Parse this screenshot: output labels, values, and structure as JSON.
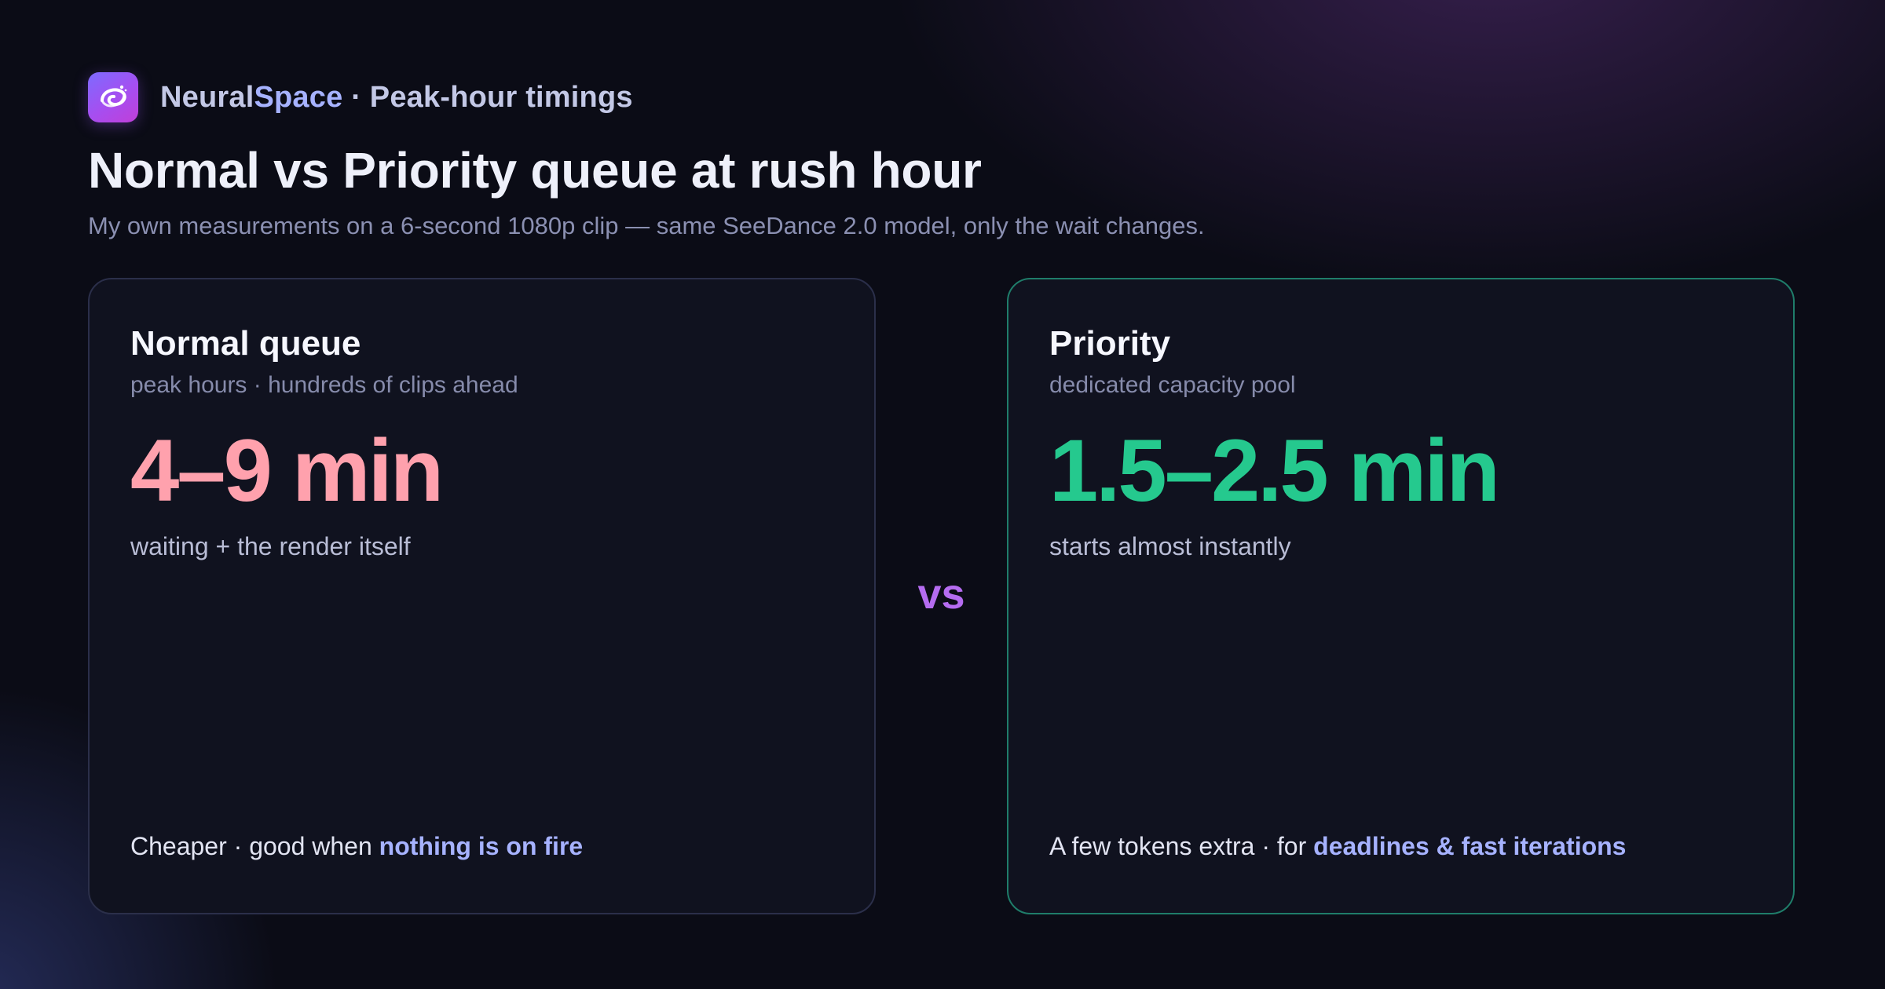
{
  "brand": {
    "name_part1": "Neural",
    "name_part2": "Space",
    "section": " · Peak-hour timings"
  },
  "title": "Normal vs Priority queue at rush hour",
  "subtitle": "My own measurements on a 6-second 1080p clip — same SeeDance 2.0 model, only the wait changes.",
  "vs_label": "vs",
  "cards": {
    "normal": {
      "title": "Normal queue",
      "subtitle": "peak hours · hundreds of clips ahead",
      "time": "4–9 min",
      "time_note": "waiting + the render itself",
      "footer_prefix": "Cheaper · good when ",
      "footer_highlight": "nothing is on fire"
    },
    "priority": {
      "title": "Priority",
      "subtitle": "dedicated capacity pool",
      "time": "1.5–2.5 min",
      "time_note": "starts almost instantly",
      "footer_prefix": "A few tokens extra · for ",
      "footer_highlight": "deadlines & fast iterations"
    }
  },
  "colors": {
    "normal_accent": "#ffa1ad",
    "priority_accent": "#25c98e",
    "highlight": "#a6b2ff",
    "vs": "#b56cf0"
  },
  "icons": {
    "logo": "galaxy-swirl-icon"
  }
}
